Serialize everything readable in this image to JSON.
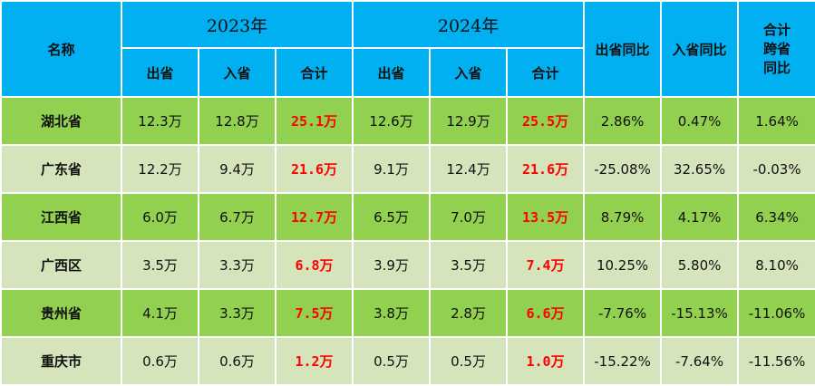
{
  "header": {
    "name": "名称",
    "year1": "2023年",
    "year2": "2024年",
    "out_yoy": "出省同比",
    "in_yoy": "入省同比",
    "total_yoy_line1": "合计",
    "total_yoy_line2": "跨省",
    "total_yoy_line3": "同比",
    "out": "出省",
    "in": "入省",
    "total": "合计"
  },
  "rows": [
    {
      "name": "湖北省",
      "out23": "12.3万",
      "in23": "12.8万",
      "tot23": "25.1万",
      "out24": "12.6万",
      "in24": "12.9万",
      "tot24": "25.5万",
      "out_yoy": "2.86%",
      "in_yoy": "0.47%",
      "tot_yoy": "1.64%"
    },
    {
      "name": "广东省",
      "out23": "12.2万",
      "in23": "9.4万",
      "tot23": "21.6万",
      "out24": "9.1万",
      "in24": "12.4万",
      "tot24": "21.6万",
      "out_yoy": "-25.08%",
      "in_yoy": "32.65%",
      "tot_yoy": "-0.03%"
    },
    {
      "name": "江西省",
      "out23": "6.0万",
      "in23": "6.7万",
      "tot23": "12.7万",
      "out24": "6.5万",
      "in24": "7.0万",
      "tot24": "13.5万",
      "out_yoy": "8.79%",
      "in_yoy": "4.17%",
      "tot_yoy": "6.34%"
    },
    {
      "name": "广西区",
      "out23": "3.5万",
      "in23": "3.3万",
      "tot23": "6.8万",
      "out24": "3.9万",
      "in24": "3.5万",
      "tot24": "7.4万",
      "out_yoy": "10.25%",
      "in_yoy": "5.80%",
      "tot_yoy": "8.10%"
    },
    {
      "name": "贵州省",
      "out23": "4.1万",
      "in23": "3.3万",
      "tot23": "7.5万",
      "out24": "3.8万",
      "in24": "2.8万",
      "tot24": "6.6万",
      "out_yoy": "-7.76%",
      "in_yoy": "-15.13%",
      "tot_yoy": "-11.06%"
    },
    {
      "name": "重庆市",
      "out23": "0.6万",
      "in23": "0.6万",
      "tot23": "1.2万",
      "out24": "0.5万",
      "in24": "0.5万",
      "tot24": "1.0万",
      "out_yoy": "-15.22%",
      "in_yoy": "-7.64%",
      "tot_yoy": "-11.56%"
    }
  ],
  "colors": {
    "header_bg": "#00b0f0",
    "row_dark": "#92d050",
    "row_light": "#d6e4bc",
    "total_text": "#ff0000"
  }
}
